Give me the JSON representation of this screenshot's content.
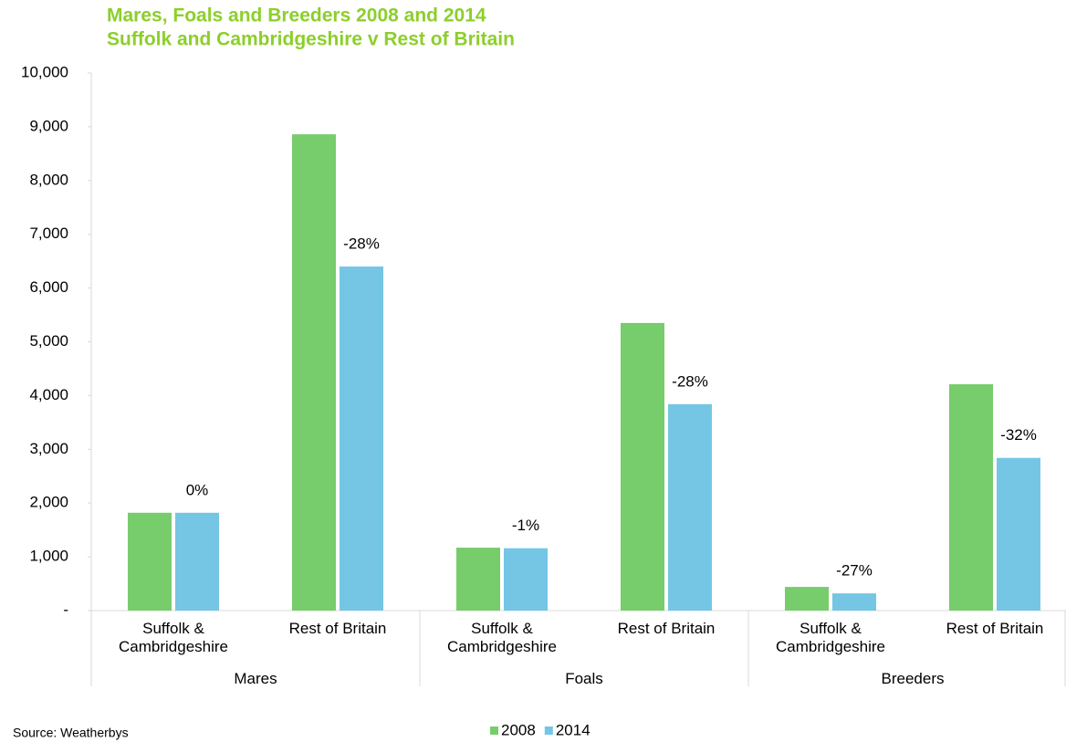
{
  "chart_data": {
    "type": "bar",
    "title": "Mares, Foals and Breeders 2008 and 2014",
    "subtitle": "Suffolk and Cambridgeshire v Rest of Britain",
    "categories": [
      "Suffolk & Cambridgeshire",
      "Rest of Britain",
      "Suffolk & Cambridgeshire",
      "Rest of Britain",
      "Suffolk & Cambridgeshire",
      "Rest of Britain"
    ],
    "groups": [
      "Mares",
      "Foals",
      "Breeders"
    ],
    "series": [
      {
        "name": "2008",
        "color": "#77cc6c",
        "values": [
          1820,
          8860,
          1170,
          5350,
          440,
          4210
        ]
      },
      {
        "name": "2014",
        "color": "#74c6e4",
        "values": [
          1820,
          6400,
          1160,
          3840,
          320,
          2840
        ]
      }
    ],
    "annotations": [
      "0%",
      "-28%",
      "-1%",
      "-28%",
      "-27%",
      "-32%"
    ],
    "ylim": [
      0,
      10000
    ],
    "yticks": [
      {
        "value": 0,
        "label": "-"
      },
      {
        "value": 1000,
        "label": "1,000"
      },
      {
        "value": 2000,
        "label": "2,000"
      },
      {
        "value": 3000,
        "label": "3,000"
      },
      {
        "value": 4000,
        "label": "4,000"
      },
      {
        "value": 5000,
        "label": "5,000"
      },
      {
        "value": 6000,
        "label": "6,000"
      },
      {
        "value": 7000,
        "label": "7,000"
      },
      {
        "value": 8000,
        "label": "8,000"
      },
      {
        "value": 9000,
        "label": "9,000"
      },
      {
        "value": 10000,
        "label": "10,000"
      }
    ],
    "grid": false,
    "legend": "bottom",
    "source": "Source: Weatherbys"
  }
}
